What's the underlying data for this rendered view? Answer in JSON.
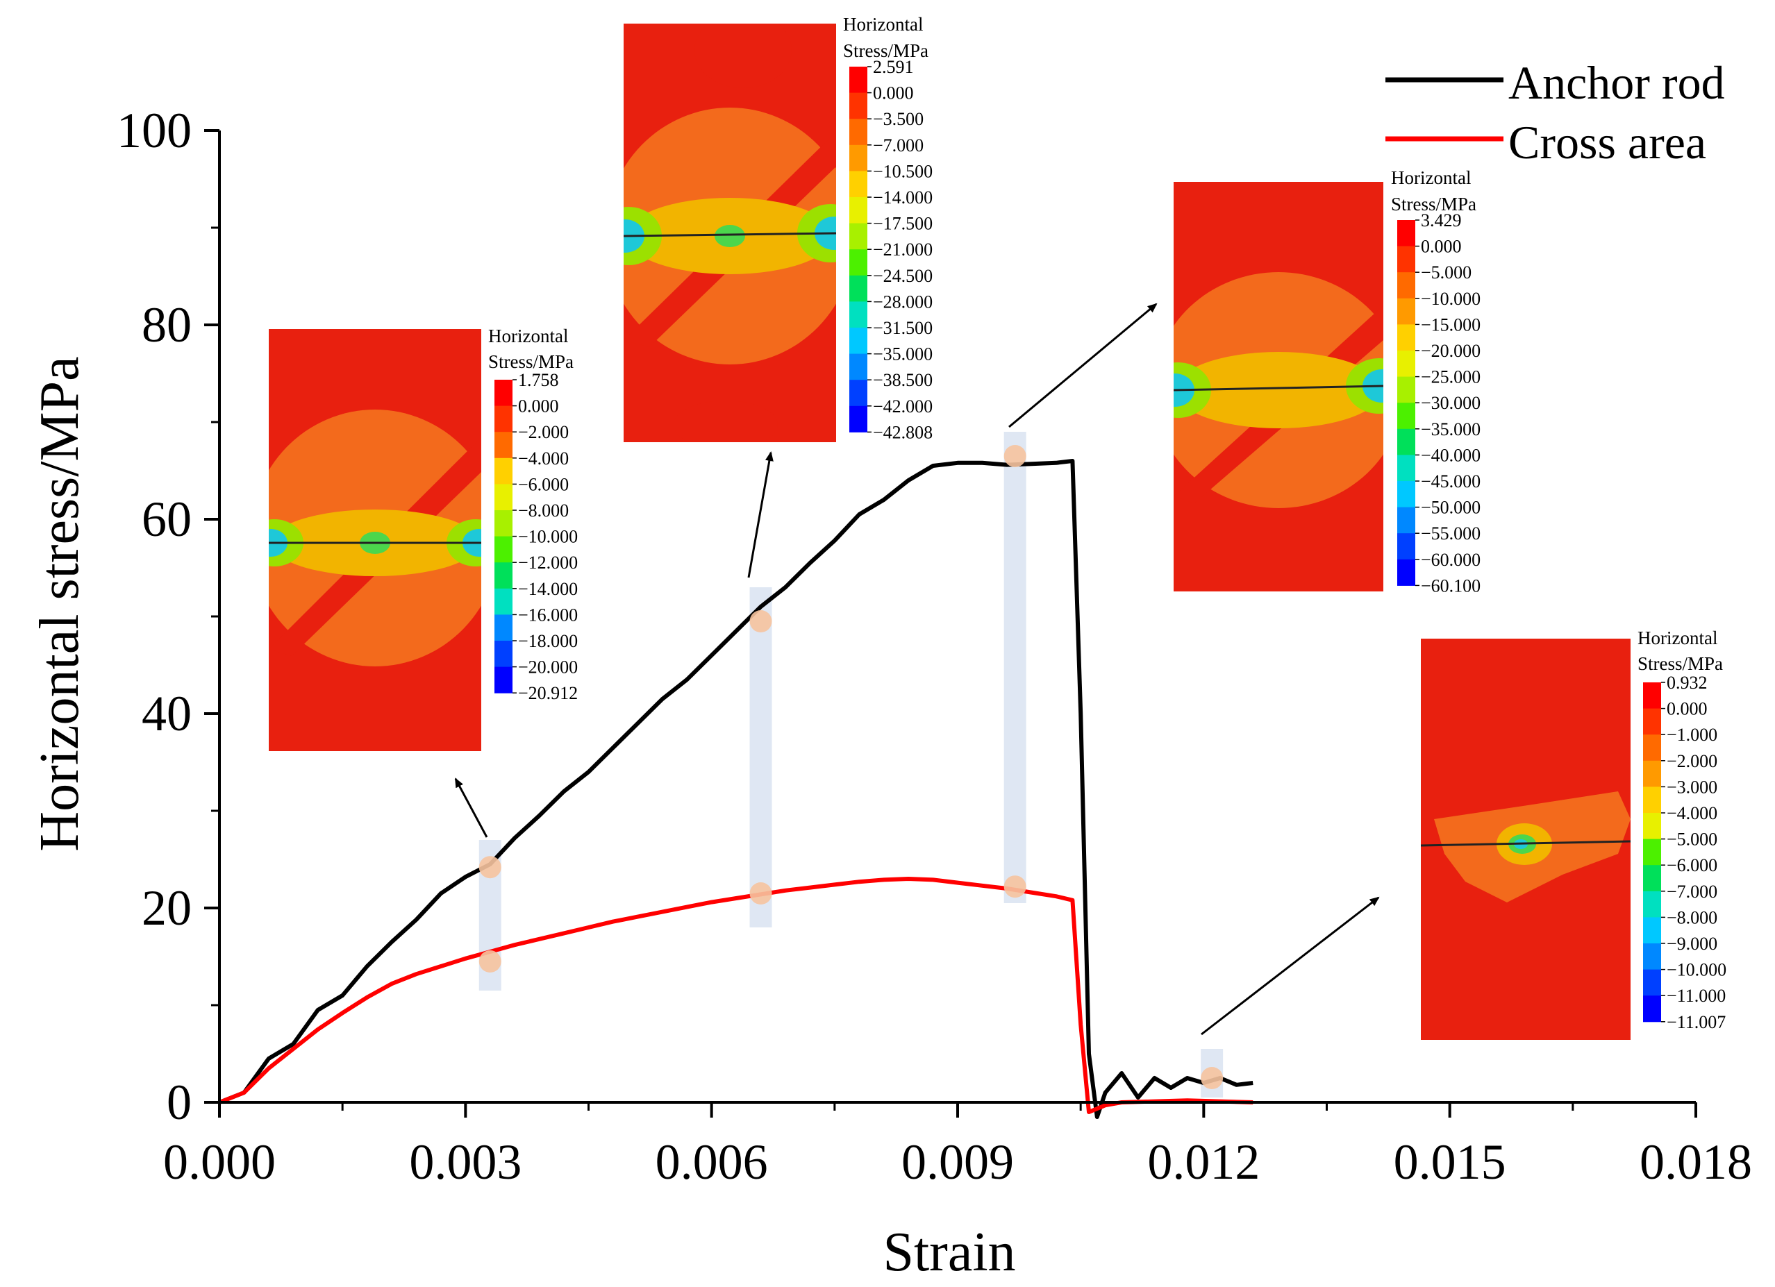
{
  "chart_data": {
    "type": "line",
    "title": "",
    "xlabel": "Strain",
    "ylabel": "Horizontal stress/MPa",
    "xlim": [
      0.0,
      0.018
    ],
    "ylim": [
      0,
      100
    ],
    "xticks": [
      "0.000",
      "0.003",
      "0.006",
      "0.009",
      "0.012",
      "0.015",
      "0.018"
    ],
    "yticks": [
      "0",
      "20",
      "40",
      "60",
      "80",
      "100"
    ],
    "xtick_values": [
      0.0,
      0.003,
      0.006,
      0.009,
      0.012,
      0.015,
      0.018
    ],
    "ytick_values": [
      0,
      20,
      40,
      60,
      80,
      100
    ],
    "legend_position": "top-right",
    "series": [
      {
        "name": "Anchor rod",
        "color": "#000000",
        "x": [
          0.0,
          0.0003,
          0.0006,
          0.0009,
          0.0012,
          0.0015,
          0.0018,
          0.0021,
          0.0024,
          0.0027,
          0.003,
          0.0033,
          0.0036,
          0.0039,
          0.0042,
          0.0045,
          0.0048,
          0.0051,
          0.0054,
          0.0057,
          0.006,
          0.0063,
          0.0066,
          0.0069,
          0.0072,
          0.0075,
          0.0078,
          0.0081,
          0.0084,
          0.0087,
          0.009,
          0.0093,
          0.0096,
          0.0099,
          0.0102,
          0.0104,
          0.0105,
          0.0106,
          0.0107,
          0.0108,
          0.011,
          0.0112,
          0.0114,
          0.0116,
          0.0118,
          0.012,
          0.0122,
          0.0124,
          0.0126
        ],
        "values": [
          0.0,
          1.0,
          4.5,
          6.0,
          9.5,
          11.0,
          14.0,
          16.5,
          18.8,
          21.5,
          23.2,
          24.5,
          27.2,
          29.5,
          32.0,
          34.0,
          36.5,
          39.0,
          41.5,
          43.5,
          46.0,
          48.5,
          51.0,
          53.0,
          55.5,
          57.8,
          60.5,
          62.0,
          64.0,
          65.5,
          65.8,
          65.8,
          65.6,
          65.7,
          65.8,
          66.0,
          40.0,
          5.0,
          -1.5,
          1.0,
          3.0,
          0.5,
          2.5,
          1.5,
          2.5,
          2.0,
          2.5,
          1.8,
          2.0
        ]
      },
      {
        "name": "Cross area",
        "color": "#ff0000",
        "x": [
          0.0,
          0.0003,
          0.0006,
          0.0009,
          0.0012,
          0.0015,
          0.0018,
          0.0021,
          0.0024,
          0.0027,
          0.003,
          0.0033,
          0.0036,
          0.0039,
          0.0042,
          0.0045,
          0.0048,
          0.0051,
          0.0054,
          0.0057,
          0.006,
          0.0063,
          0.0066,
          0.0069,
          0.0072,
          0.0075,
          0.0078,
          0.0081,
          0.0084,
          0.0087,
          0.009,
          0.0093,
          0.0096,
          0.0099,
          0.0102,
          0.0104,
          0.0105,
          0.0106,
          0.0108,
          0.011,
          0.0114,
          0.0118,
          0.0122,
          0.0126
        ],
        "values": [
          0.0,
          1.0,
          3.5,
          5.5,
          7.5,
          9.2,
          10.8,
          12.2,
          13.2,
          14.0,
          14.8,
          15.5,
          16.2,
          16.8,
          17.4,
          18.0,
          18.6,
          19.1,
          19.6,
          20.1,
          20.6,
          21.0,
          21.4,
          21.8,
          22.1,
          22.4,
          22.7,
          22.9,
          23.0,
          22.9,
          22.6,
          22.3,
          22.0,
          21.6,
          21.2,
          20.8,
          8.0,
          -1.0,
          -0.3,
          0.0,
          0.1,
          0.2,
          0.1,
          0.0
        ]
      }
    ],
    "highlight_markers": [
      {
        "x": 0.0033,
        "y": 24.2
      },
      {
        "x": 0.0033,
        "y": 14.5
      },
      {
        "x": 0.0066,
        "y": 49.5
      },
      {
        "x": 0.0066,
        "y": 21.5
      },
      {
        "x": 0.0097,
        "y": 66.5
      },
      {
        "x": 0.0097,
        "y": 22.2
      },
      {
        "x": 0.0121,
        "y": 2.5
      }
    ],
    "insets": [
      {
        "title_line1": "Horizontal",
        "title_line2": "Stress/MPa",
        "colorbar_ticks": [
          "1.758",
          "0.000",
          "−2.000",
          "−4.000",
          "−6.000",
          "−8.000",
          "−10.000",
          "−12.000",
          "−14.000",
          "−16.000",
          "−18.000",
          "−20.000",
          "−20.912"
        ]
      },
      {
        "title_line1": "Horizontal",
        "title_line2": "Stress/MPa",
        "colorbar_ticks": [
          "2.591",
          "0.000",
          "−3.500",
          "−7.000",
          "−10.500",
          "−14.000",
          "−17.500",
          "−21.000",
          "−24.500",
          "−28.000",
          "−31.500",
          "−35.000",
          "−38.500",
          "−42.000",
          "−42.808"
        ]
      },
      {
        "title_line1": "Horizontal",
        "title_line2": "Stress/MPa",
        "colorbar_ticks": [
          "3.429",
          "0.000",
          "−5.000",
          "−10.000",
          "−15.000",
          "−20.000",
          "−25.000",
          "−30.000",
          "−35.000",
          "−40.000",
          "−45.000",
          "−50.000",
          "−55.000",
          "−60.000",
          "−60.100"
        ]
      },
      {
        "title_line1": "Horizontal",
        "title_line2": "Stress/MPa",
        "colorbar_ticks": [
          "0.932",
          "0.000",
          "−1.000",
          "−2.000",
          "−3.000",
          "−4.000",
          "−5.000",
          "−6.000",
          "−7.000",
          "−8.000",
          "−9.000",
          "−10.000",
          "−11.000",
          "−11.007"
        ]
      }
    ]
  },
  "colors": {
    "axis": "#000000",
    "anchor_rod": "#000000",
    "cross_area": "#ff0000",
    "marker": "#f6c39e",
    "marker_band": "#dfe7f3",
    "contour_base": "#e8200f",
    "colorbar_scale": [
      "#ff0000",
      "#ff3300",
      "#ff6a00",
      "#ff9a00",
      "#ffd000",
      "#e8f000",
      "#a8f000",
      "#4cf000",
      "#00e05a",
      "#00e0c0",
      "#00c8ff",
      "#0088ff",
      "#0040ff",
      "#0000ff"
    ]
  }
}
